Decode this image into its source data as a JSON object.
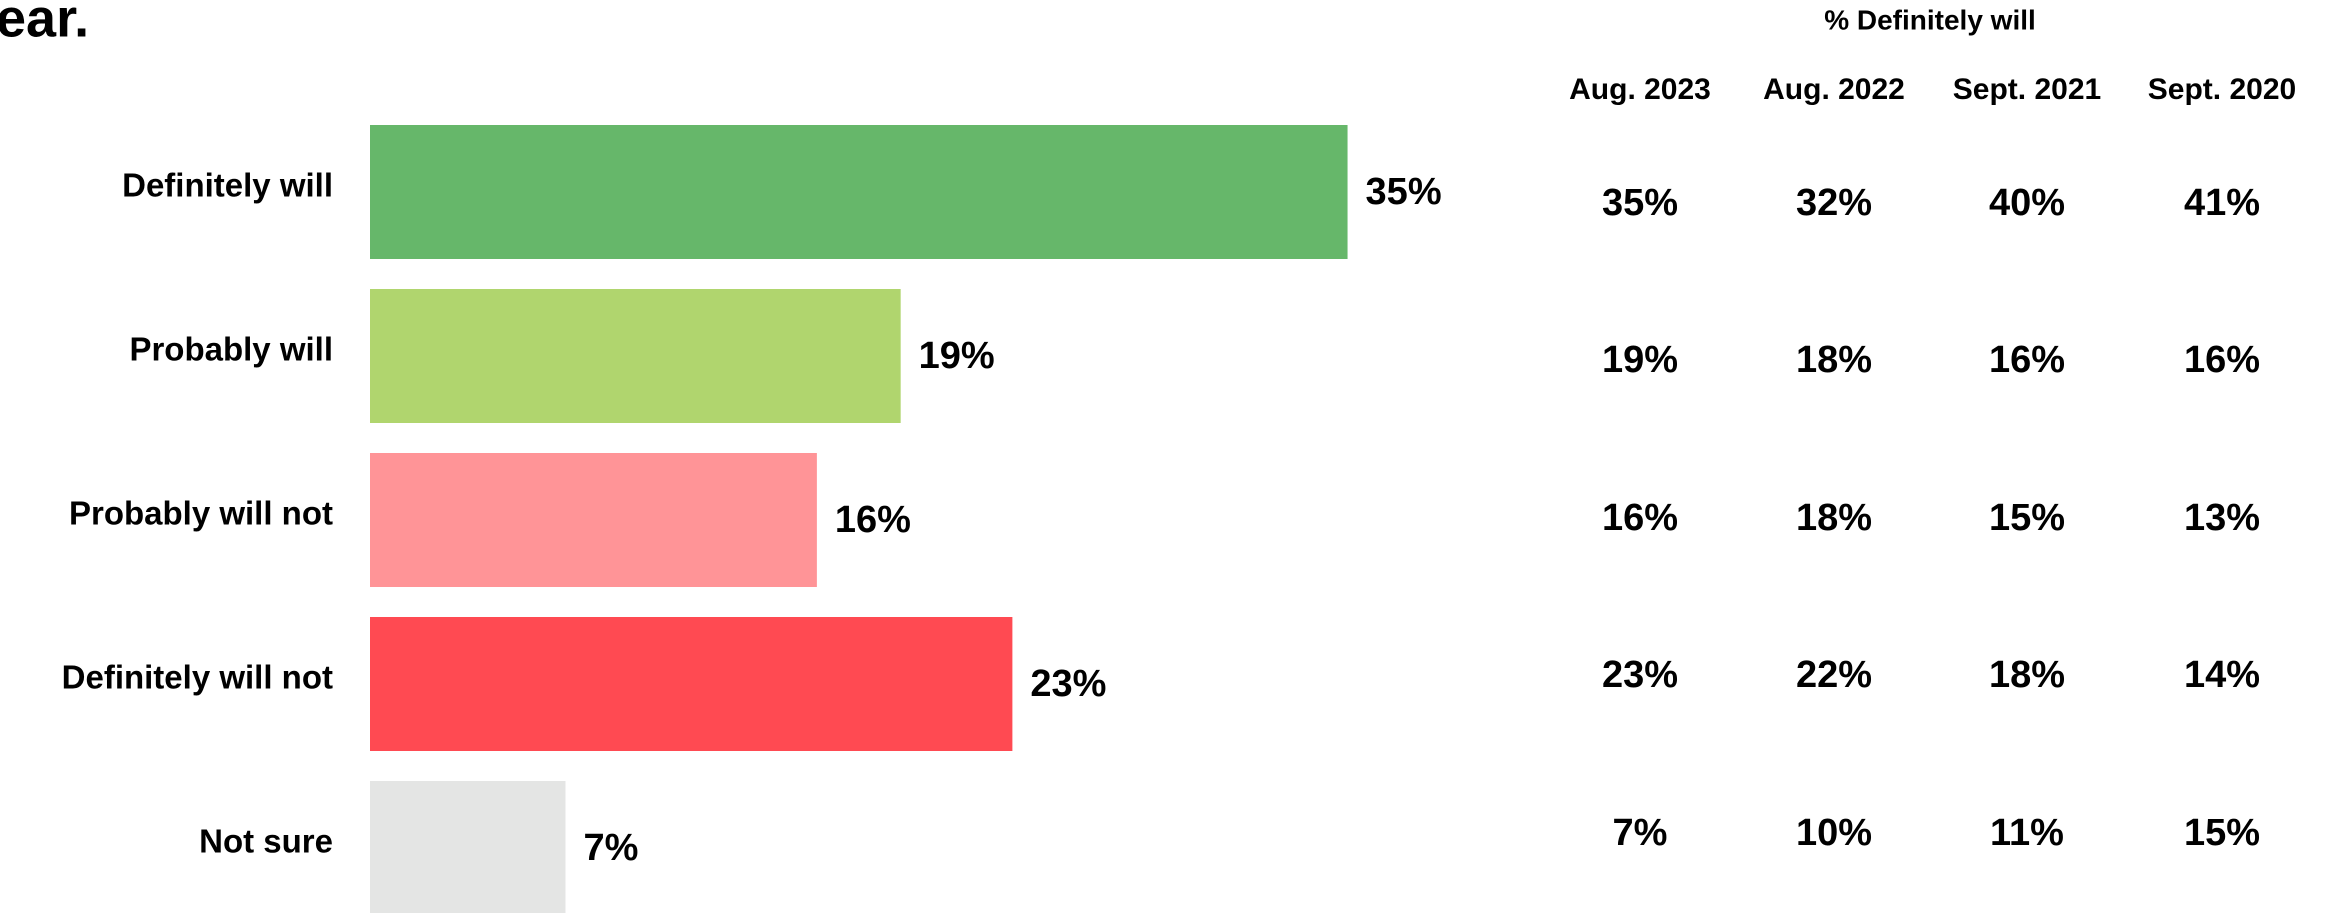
{
  "chart_data": {
    "type": "bar",
    "orientation": "horizontal",
    "title": "ear.",
    "categories": [
      "Definitely will",
      "Probably will",
      "Probably will not",
      "Definitely will not",
      "Not sure"
    ],
    "values": [
      35,
      19,
      16,
      23,
      7
    ],
    "value_labels": [
      "35%",
      "19%",
      "16%",
      "23%",
      "7%"
    ],
    "colors": [
      "#66b76a",
      "#b0d56e",
      "#ff9497",
      "#ff4a52",
      "#e4e5e4"
    ]
  },
  "table": {
    "title": "% Definitely will",
    "columns": [
      "Aug. 2023",
      "Aug. 2022",
      "Sept. 2021",
      "Sept. 2020"
    ],
    "rows": [
      [
        "35%",
        "32%",
        "40%",
        "41%"
      ],
      [
        "19%",
        "18%",
        "16%",
        "16%"
      ],
      [
        "16%",
        "18%",
        "15%",
        "13%"
      ],
      [
        "23%",
        "22%",
        "18%",
        "14%"
      ],
      [
        "7%",
        "10%",
        "11%",
        "15%"
      ]
    ]
  }
}
